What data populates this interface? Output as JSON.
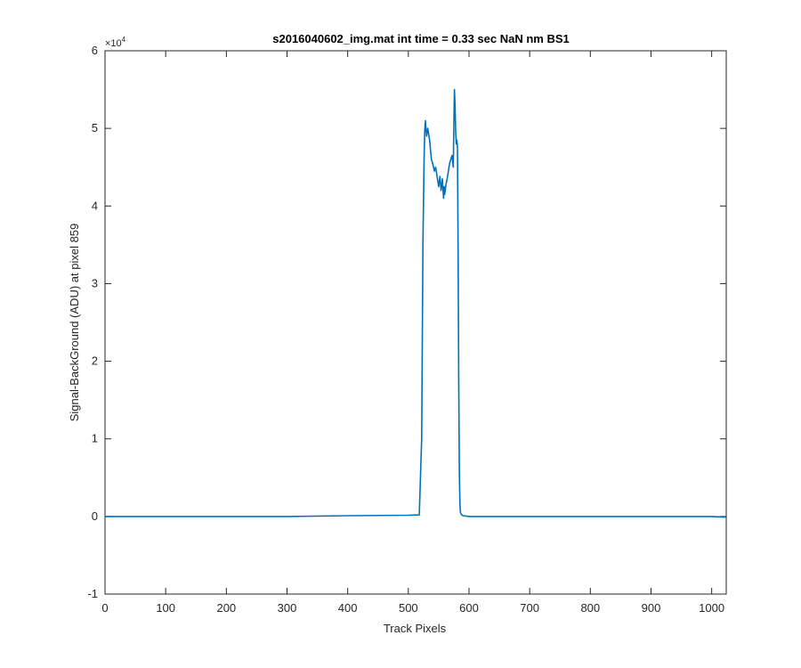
{
  "chart_data": {
    "type": "line",
    "title": "s2016040602_img.mat int time = 0.33 sec  NaN nm BS1",
    "xlabel": "Track Pixels",
    "ylabel": "Signal-BackGround (ADU) at pixel 859",
    "y_exponent_label": "×10",
    "y_exponent_power": "4",
    "xlim": [
      0,
      1024
    ],
    "ylim": [
      -10000,
      60000
    ],
    "x_ticks": [
      0,
      100,
      200,
      300,
      400,
      500,
      600,
      700,
      800,
      900,
      1000
    ],
    "x_tick_labels": [
      "0",
      "100",
      "200",
      "300",
      "400",
      "500",
      "600",
      "700",
      "800",
      "900",
      "1000"
    ],
    "y_ticks": [
      -10000,
      0,
      10000,
      20000,
      30000,
      40000,
      50000,
      60000
    ],
    "y_tick_labels": [
      "-1",
      "0",
      "1",
      "2",
      "3",
      "4",
      "5",
      "6"
    ],
    "grid": false,
    "line_color": "#0072BD",
    "series": [
      {
        "x": [
          0,
          100,
          200,
          300,
          400,
          500,
          518,
          522,
          524,
          526,
          527,
          528,
          530,
          532,
          535,
          538,
          540,
          543,
          545,
          548,
          550,
          552,
          554,
          556,
          558,
          559,
          560,
          562,
          564,
          566,
          568,
          570,
          572,
          574,
          575,
          576,
          577,
          578,
          579,
          580,
          581,
          582,
          583,
          584,
          585,
          586,
          588,
          590,
          600,
          700,
          800,
          900,
          1000,
          1024
        ],
        "y": [
          0,
          0,
          0,
          0,
          100,
          150,
          200,
          10000,
          35000,
          46000,
          49500,
          51000,
          49000,
          50000,
          48500,
          46000,
          45500,
          44500,
          45000,
          43500,
          42500,
          43800,
          42000,
          43500,
          41000,
          42500,
          41500,
          42800,
          43500,
          44500,
          45500,
          46000,
          46500,
          45000,
          50000,
          55000,
          53000,
          49500,
          48000,
          48500,
          47500,
          35000,
          18000,
          6000,
          1500,
          500,
          200,
          100,
          0,
          0,
          0,
          0,
          0,
          -100
        ]
      }
    ]
  }
}
